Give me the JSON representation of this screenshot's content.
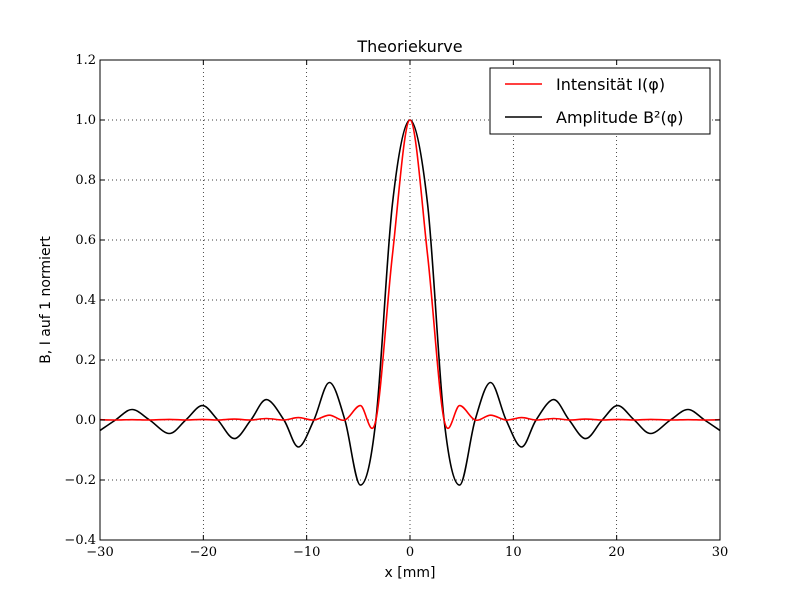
{
  "chart_data": {
    "type": "line",
    "title": "Theoriekurve",
    "xlabel": "x [mm]",
    "ylabel": "B, I auf 1 normiert",
    "xlim": [
      -30,
      30
    ],
    "ylim": [
      -0.4,
      1.2
    ],
    "xticks": [
      -30,
      -20,
      -10,
      0,
      10,
      20,
      30
    ],
    "yticks": [
      -0.4,
      -0.2,
      0.0,
      0.2,
      0.4,
      0.6,
      0.8,
      1.0,
      1.2
    ],
    "xtick_labels": [
      "−30",
      "−20",
      "−10",
      "0",
      "10",
      "20",
      "30"
    ],
    "ytick_labels": [
      "−0.4",
      "−0.2",
      "0.0",
      "0.2",
      "0.4",
      "0.6",
      "0.8",
      "1.0",
      "1.2"
    ],
    "grid": true,
    "legend_position": "top-right",
    "x": [
      -30,
      -28.5,
      -26.9,
      -25.2,
      -23.3,
      -21.7,
      -20.1,
      -18.6,
      -17.0,
      -15.4,
      -13.9,
      -12.2,
      -10.8,
      -9.3,
      -7.8,
      -6.3,
      -4.8,
      -3.3,
      -1.7,
      0,
      1.7,
      3.3,
      4.8,
      6.3,
      7.8,
      9.3,
      10.8,
      12.2,
      13.9,
      15.4,
      17.0,
      18.6,
      20.1,
      21.7,
      23.3,
      25.2,
      26.9,
      28.5,
      30
    ],
    "series": [
      {
        "name": "Intensität I(φ)",
        "color": "#ff0000",
        "values": [
          0.001,
          0.0,
          0.001,
          0.0,
          0.002,
          0.0,
          0.002,
          0.0,
          0.003,
          0.0,
          0.005,
          0.0,
          0.008,
          0.0,
          0.016,
          0.0,
          0.048,
          0.0,
          0.55,
          1.0,
          0.55,
          0.0,
          0.048,
          0.0,
          0.016,
          0.0,
          0.008,
          0.0,
          0.005,
          0.0,
          0.003,
          0.0,
          0.002,
          0.0,
          0.002,
          0.0,
          0.001,
          0.0,
          0.001
        ]
      },
      {
        "name": "Amplitude B²(φ)",
        "color": "#000000",
        "values": [
          -0.035,
          0.0,
          0.035,
          0.0,
          -0.045,
          0.0,
          0.048,
          0.0,
          -0.062,
          0.0,
          0.068,
          0.0,
          -0.09,
          0.0,
          0.125,
          0.0,
          -0.217,
          0.0,
          0.72,
          1.0,
          0.72,
          0.0,
          -0.217,
          0.0,
          0.125,
          0.0,
          -0.09,
          0.0,
          0.068,
          0.0,
          -0.062,
          0.0,
          0.048,
          0.0,
          -0.045,
          0.0,
          0.035,
          0.0,
          -0.035
        ]
      }
    ]
  }
}
